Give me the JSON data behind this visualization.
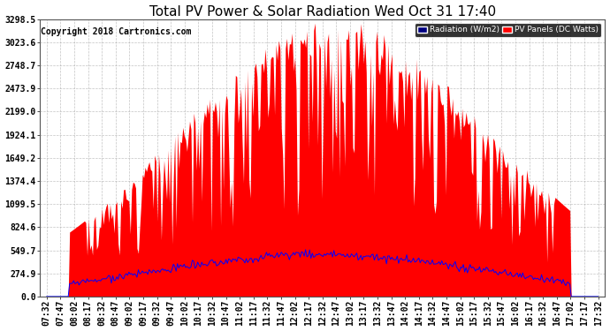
{
  "title": "Total PV Power & Solar Radiation Wed Oct 31 17:40",
  "copyright": "Copyright 2018 Cartronics.com",
  "yticks": [
    0.0,
    274.9,
    549.7,
    824.6,
    1099.5,
    1374.4,
    1649.2,
    1924.1,
    2199.0,
    2473.9,
    2748.7,
    3023.6,
    3298.5
  ],
  "ymax": 3298.5,
  "ymin": 0.0,
  "legend_radiation_label": "Radiation (W/m2)",
  "legend_pv_label": "PV Panels (DC Watts)",
  "legend_pv_bg": "#ff0000",
  "legend_radiation_bg": "#000080",
  "bg_color": "#ffffff",
  "plot_bg_color": "#ffffff",
  "grid_color": "#aaaaaa",
  "pv_fill_color": "#ff0000",
  "radiation_line_color": "#0000ff",
  "title_fontsize": 11,
  "copyright_fontsize": 7,
  "tick_fontsize": 7,
  "x_tick_labels": [
    "07:32",
    "07:47",
    "08:02",
    "08:17",
    "08:32",
    "08:47",
    "09:02",
    "09:17",
    "09:32",
    "09:47",
    "10:02",
    "10:17",
    "10:32",
    "10:47",
    "11:02",
    "11:17",
    "11:32",
    "11:47",
    "12:02",
    "12:17",
    "12:32",
    "12:47",
    "13:02",
    "13:17",
    "13:32",
    "13:47",
    "14:02",
    "14:17",
    "14:32",
    "14:47",
    "15:02",
    "15:17",
    "15:32",
    "15:47",
    "16:02",
    "16:17",
    "16:32",
    "16:47",
    "17:02",
    "17:17",
    "17:32"
  ],
  "n_ticks": 41,
  "n_points": 410
}
